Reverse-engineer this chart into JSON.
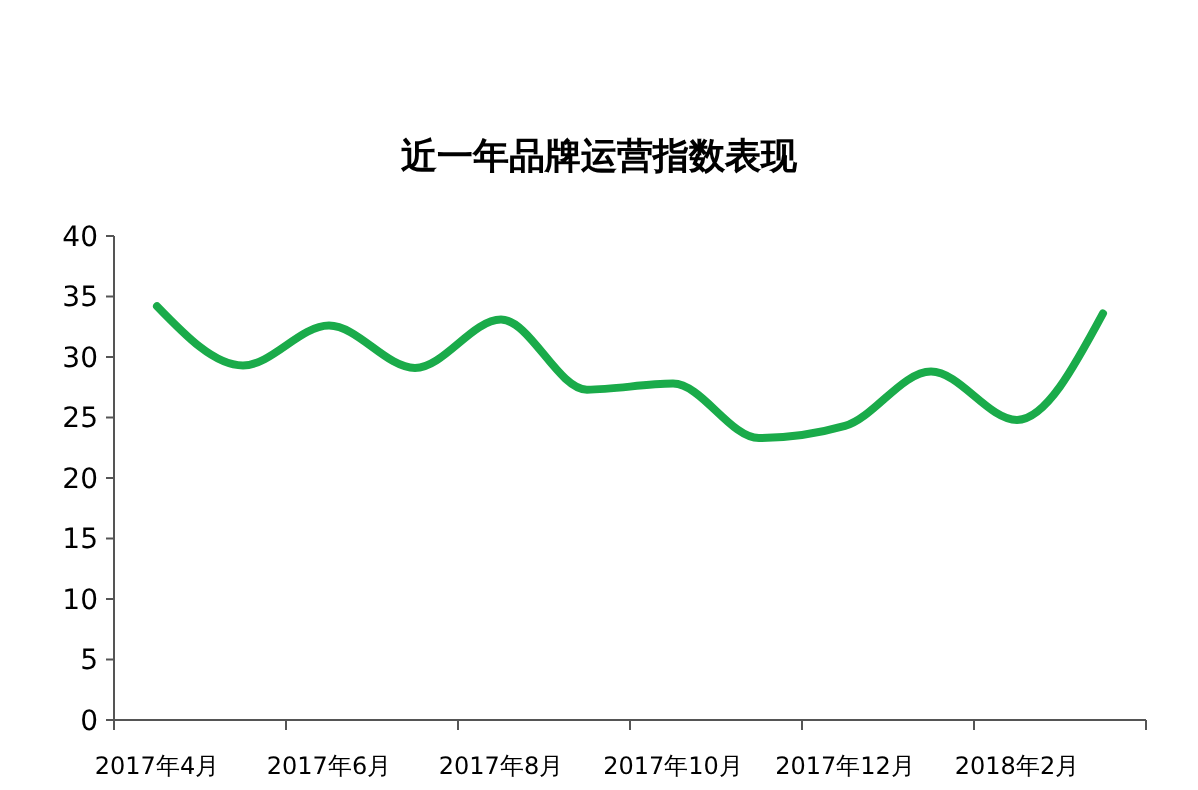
{
  "chart_data": {
    "type": "line",
    "title": "近一年品牌运营指数表现",
    "categories": [
      "2017年4月",
      null,
      "2017年6月",
      null,
      "2017年8月",
      null,
      "2017年10月",
      null,
      "2017年12月",
      null,
      "2018年2月",
      null
    ],
    "series": [
      {
        "color": "#1aab4a",
        "values": [
          34.2,
          29.3,
          32.6,
          29.1,
          33.1,
          27.3,
          27.8,
          23.3,
          24.3,
          28.8,
          24.8,
          33.6
        ]
      }
    ],
    "ylim": [
      0,
      40
    ],
    "yticks": [
      0,
      5,
      10,
      15,
      20,
      25,
      30,
      35,
      40
    ],
    "marker": "none",
    "line_style": "solid"
  }
}
